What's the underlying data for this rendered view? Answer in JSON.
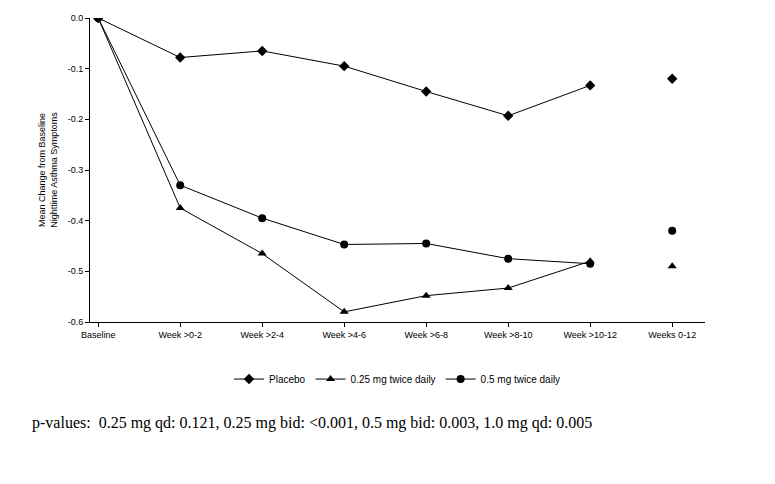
{
  "chart_data": {
    "type": "line",
    "y_label": "Mean Change from Baseline\nNighttime Asthma Symptoms",
    "categories": [
      "Baseline",
      "Week >0-2",
      "Week >2-4",
      "Week >4-6",
      "Week >6-8",
      "Week >8-10",
      "Week >10-12",
      "Weeks 0-12"
    ],
    "ylim": [
      -0.6,
      0
    ],
    "yticks": [
      {
        "value": 0,
        "label": "0.0"
      },
      -0.1,
      -0.2,
      -0.3,
      -0.4,
      -0.5,
      -0.6
    ],
    "grid": false,
    "legend": "bottom",
    "series": [
      {
        "name": "Placebo",
        "color": "#000000",
        "marker": "diamond",
        "values": [
          0,
          -0.078,
          -0.065,
          -0.095,
          -0.145,
          -0.193,
          -0.133,
          -0.12
        ]
      },
      {
        "name": "0.25 mg twice daily",
        "color": "#000000",
        "marker": "triangle",
        "values": [
          0,
          -0.375,
          -0.465,
          -0.58,
          -0.548,
          -0.533,
          -0.48,
          -0.49
        ]
      },
      {
        "name": "0.5 mg twice daily",
        "color": "#000000",
        "marker": "circle",
        "values": [
          0,
          -0.33,
          -0.395,
          -0.447,
          -0.445,
          -0.475,
          -0.485,
          -0.42
        ]
      }
    ],
    "annotations": [
      "p-values:  0.25 mg qd: 0.121, 0.25 mg bid: <0.001, 0.5 mg bid: 0.003, 1.0 mg qd: 0.005"
    ]
  }
}
